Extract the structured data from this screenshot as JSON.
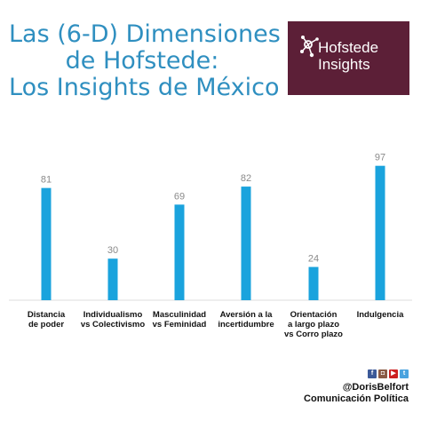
{
  "title": {
    "line1": "Las (6-D) Dimensiones",
    "line2": "de Hofstede:",
    "line3": "Los Insights de México"
  },
  "logo": {
    "line1": "Hofstede",
    "line2": "Insights"
  },
  "chart_data": {
    "type": "bar",
    "categories": [
      [
        "Distancia",
        "de poder"
      ],
      [
        "Individualismo",
        "vs Colectivismo"
      ],
      [
        "Masculinidad",
        "vs Feminidad"
      ],
      [
        "Aversión a la",
        "incertidumbre"
      ],
      [
        "Orientación",
        "a largo plazo",
        "vs Corro plazo"
      ],
      [
        "Indulgencia"
      ]
    ],
    "values": [
      81,
      30,
      69,
      82,
      24,
      97
    ],
    "ylim": [
      0,
      100
    ],
    "grid": false,
    "bar_color": "#1aa3dd",
    "label_color": "#8a8a8a",
    "axis_color": "#dddddd"
  },
  "credits": {
    "handle": "@DorisBelfort",
    "org": "Comunicación Política"
  },
  "social_icons": [
    "facebook-icon",
    "instagram-icon",
    "youtube-icon",
    "twitter-icon"
  ]
}
